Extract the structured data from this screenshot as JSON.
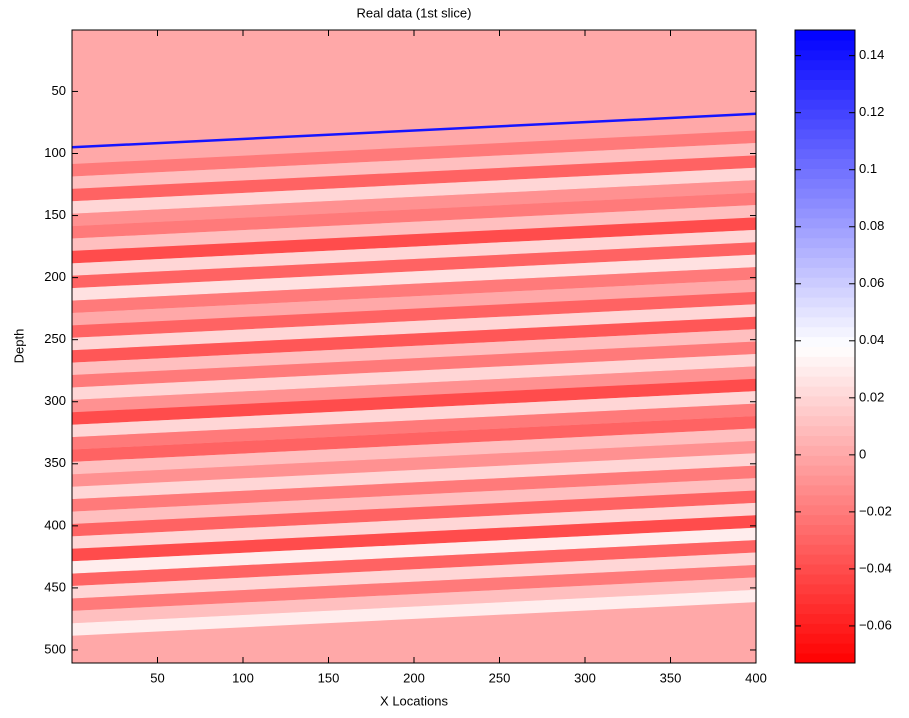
{
  "chart_data": {
    "type": "heatmap",
    "title": "Real data (1st slice)",
    "x_label": "X Locations",
    "y_label": "Depth",
    "xlim": [
      0,
      400
    ],
    "ylim": [
      0.5,
      510.5
    ],
    "y_reversed": true,
    "xticks": [
      50,
      100,
      150,
      200,
      250,
      300,
      350,
      400
    ],
    "yticks": [
      50,
      100,
      150,
      200,
      250,
      300,
      350,
      400,
      450,
      500
    ],
    "background_value": 0,
    "depths": [
      100,
      110,
      120,
      130,
      140,
      150,
      160,
      170,
      180,
      190,
      200,
      210,
      220,
      230,
      240,
      250,
      260,
      270,
      280,
      290,
      300,
      310,
      320,
      330,
      340,
      350,
      360,
      370,
      380,
      390,
      400,
      410,
      420,
      430,
      440,
      450,
      460,
      470
    ],
    "values": [
      -0.02,
      0.01,
      -0.03,
      0.02,
      -0.01,
      -0.02,
      0.01,
      -0.04,
      0.02,
      -0.03,
      0.025,
      -0.02,
      0,
      -0.03,
      0.02,
      -0.035,
      0.01,
      -0.02,
      0.02,
      -0.01,
      -0.04,
      0.02,
      -0.02,
      -0.03,
      0.01,
      -0.01,
      0.02,
      -0.02,
      0.01,
      -0.03,
      0.02,
      -0.04,
      0.03,
      -0.03,
      0.02,
      -0.02,
      0.01,
      0.03
    ],
    "horizon": {
      "x": [
        0,
        400
      ],
      "y": [
        95,
        68
      ],
      "value": 0.14
    },
    "colormap": [
      "#ff0000",
      "#ffffff",
      "#0000ff"
    ],
    "clim": [
      -0.073,
      0.149
    ],
    "cticks": [
      {
        "value": -0.06,
        "label": "−0.06"
      },
      {
        "value": -0.04,
        "label": "−0.04"
      },
      {
        "value": -0.02,
        "label": "−0.02"
      },
      0,
      0.02,
      0.04,
      0.06,
      0.08,
      0.1,
      0.12,
      0.14
    ]
  }
}
